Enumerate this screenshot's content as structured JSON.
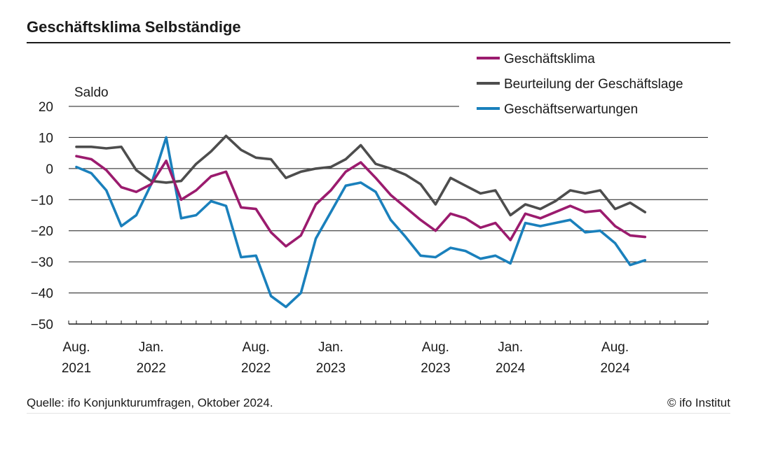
{
  "chart_data": {
    "type": "line",
    "title": "Geschäftsklima Selbständige",
    "ylabel": "Saldo",
    "ylim": [
      -50,
      20
    ],
    "yticks": [
      20,
      10,
      0,
      -10,
      -20,
      -30,
      -40,
      -50
    ],
    "ytick_labels": [
      "20",
      "10",
      "0",
      "−10",
      "−20",
      "−30",
      "−40",
      "−50"
    ],
    "x_start": "2021-08",
    "x_end": "2024-10",
    "x_tick_months": 41,
    "x_labels": [
      {
        "index": 0,
        "line1": "Aug.",
        "line2": "2021"
      },
      {
        "index": 5,
        "line1": "Jan.",
        "line2": "2022"
      },
      {
        "index": 12,
        "line1": "Aug.",
        "line2": "2022"
      },
      {
        "index": 17,
        "line1": "Jan.",
        "line2": "2023"
      },
      {
        "index": 24,
        "line1": "Aug.",
        "line2": "2023"
      },
      {
        "index": 29,
        "line1": "Jan.",
        "line2": "2024"
      },
      {
        "index": 36,
        "line1": "Aug.",
        "line2": "2024"
      }
    ],
    "legend_position": "top-right",
    "series": [
      {
        "name": "Geschäftsklima",
        "color": "#9b1b6e",
        "values": [
          4,
          3,
          -0.5,
          -6,
          -7.5,
          -5,
          2.5,
          -10,
          -7,
          -2.5,
          -1,
          -12.5,
          -13,
          -20.5,
          -25,
          -21.5,
          -11.5,
          -7,
          -1,
          2,
          -3,
          -8.5,
          -12.5,
          -16.5,
          -20,
          -14.5,
          -16,
          -19,
          -17.5,
          -23,
          -14.5,
          -16,
          -14,
          -12,
          -14,
          -13.5,
          -18.5,
          -21.5,
          -22
        ]
      },
      {
        "name": "Beurteilung der Geschäftslage",
        "color": "#4d4d4d",
        "values": [
          7,
          7,
          6.5,
          7,
          -0.5,
          -4,
          -4.5,
          -4,
          1.5,
          5.5,
          10.5,
          6,
          3.5,
          3,
          -3,
          -1,
          0,
          0.5,
          3,
          7.5,
          1.5,
          0,
          -2,
          -5,
          -11.5,
          -3,
          -5.5,
          -8,
          -7,
          -15,
          -11.5,
          -13,
          -10.5,
          -7,
          -8,
          -7,
          -13,
          -11,
          -14
        ]
      },
      {
        "name": "Geschäftserwartungen",
        "color": "#1a80bc",
        "values": [
          0.5,
          -1.5,
          -7,
          -18.5,
          -15,
          -5,
          10,
          -16,
          -15,
          -10.5,
          -12,
          -28.5,
          -28,
          -41,
          -44.5,
          -40,
          -22.5,
          -14,
          -5.5,
          -4.5,
          -7.5,
          -16.5,
          -22,
          -28,
          -28.5,
          -25.5,
          -26.5,
          -29,
          -28,
          -30.5,
          -17.5,
          -18.5,
          -17.5,
          -16.5,
          -20.5,
          -20,
          -24,
          -31,
          -29.5
        ]
      }
    ]
  },
  "source": "Quelle: ifo Konjunkturumfragen, Oktober 2024.",
  "copyright": "© ifo Institut"
}
